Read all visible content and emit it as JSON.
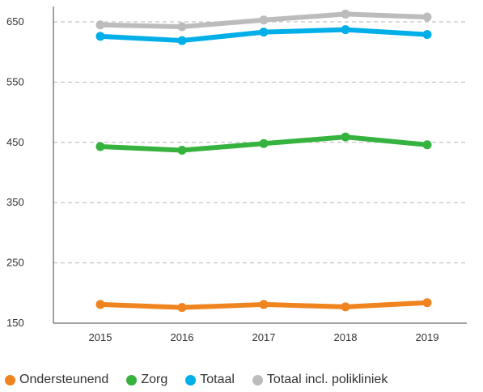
{
  "chart_data": {
    "type": "line",
    "x": [
      "2015",
      "2016",
      "2017",
      "2018",
      "2019"
    ],
    "ylim": [
      150,
      670
    ],
    "yticks": [
      150,
      250,
      350,
      450,
      550,
      650
    ],
    "ytick_labels": [
      "150",
      "250",
      "350",
      "450",
      "550",
      "650"
    ],
    "grid": true,
    "legend_position": "bottom",
    "series": [
      {
        "name": "Ondersteunend",
        "color": "#f0841f",
        "values": [
          181,
          176,
          181,
          177,
          184
        ]
      },
      {
        "name": "Zorg",
        "color": "#36b23f",
        "values": [
          443,
          437,
          448,
          459,
          446
        ]
      },
      {
        "name": "Totaal",
        "color": "#00aee8",
        "values": [
          626,
          619,
          633,
          637,
          629
        ]
      },
      {
        "name": "Totaal incl. polikliniek",
        "color": "#bcbcbc",
        "values": [
          645,
          642,
          653,
          663,
          658
        ]
      }
    ]
  }
}
